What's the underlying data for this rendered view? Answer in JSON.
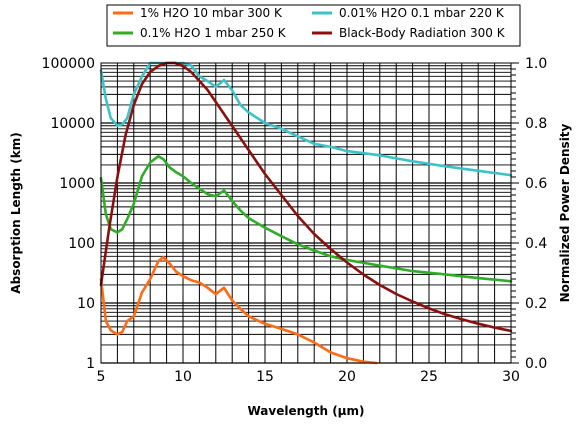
{
  "chart_data": {
    "type": "line",
    "xlabel": "Wavelength (µm)",
    "ylabel": "Absorption Length (km)",
    "y2label": "Normalized Power Density",
    "xlim": [
      5,
      30
    ],
    "ylim": [
      1,
      100000
    ],
    "yscale": "log",
    "y2lim": [
      0,
      1
    ],
    "grid": true,
    "legend_position": "top",
    "x_ticks": [
      "5",
      "10",
      "15",
      "20",
      "25",
      "30"
    ],
    "y_ticks": [
      "1",
      "10",
      "100",
      "1000",
      "10000",
      "100000"
    ],
    "y2_ticks": [
      "0.0",
      "0.2",
      "0.4",
      "0.6",
      "0.8",
      "1.0"
    ],
    "series": [
      {
        "name": "1% H2O 10 mbar 300 K",
        "color": "#ff6a13",
        "axis": "left",
        "x": [
          5,
          5.3,
          5.6,
          6,
          6.3,
          6.6,
          7,
          7.5,
          8,
          8.5,
          8.8,
          9.2,
          9.6,
          10,
          10.5,
          11,
          11.5,
          12,
          12.5,
          13,
          13.5,
          14,
          15,
          16,
          17,
          18,
          19,
          20,
          21,
          21.8
        ],
        "y": [
          25,
          5,
          3.5,
          3,
          3.3,
          5,
          6,
          15,
          25,
          50,
          58,
          45,
          33,
          28,
          24,
          22,
          18,
          14,
          18,
          11,
          8,
          6,
          4.5,
          3.7,
          3,
          2.2,
          1.5,
          1.2,
          1.05,
          1.0
        ]
      },
      {
        "name": "0.01% H2O 0.1 mbar 220 K",
        "color": "#3cc3c8",
        "axis": "left",
        "x": [
          5,
          5.3,
          5.6,
          6,
          6.3,
          6.6,
          7,
          7.5,
          8,
          8.5,
          8.8,
          9.2,
          9.6,
          10,
          10.5,
          11,
          11.5,
          12,
          12.5,
          13,
          13.5,
          14,
          15,
          16,
          17,
          18,
          19,
          20,
          22,
          24,
          26,
          28,
          30
        ],
        "y": [
          75000,
          25000,
          12000,
          9000,
          9500,
          12000,
          30000,
          60000,
          100000,
          100000,
          100000,
          100000,
          100000,
          100000,
          90000,
          60000,
          50000,
          40000,
          52000,
          35000,
          20000,
          15000,
          10000,
          8000,
          6000,
          4500,
          4000,
          3400,
          2900,
          2300,
          1900,
          1600,
          1350
        ]
      },
      {
        "name": "0.1% H2O 1 mbar 250 K",
        "color": "#2ead27",
        "axis": "left",
        "x": [
          5,
          5.3,
          5.6,
          6,
          6.3,
          6.6,
          7,
          7.5,
          8,
          8.5,
          8.8,
          9.2,
          9.6,
          10,
          10.5,
          11,
          11.5,
          12,
          12.5,
          13,
          13.5,
          14,
          15,
          16,
          17,
          18,
          19,
          20,
          22,
          24,
          26,
          28,
          30
        ],
        "y": [
          1200,
          300,
          170,
          150,
          170,
          250,
          450,
          1300,
          2200,
          2800,
          2500,
          1800,
          1500,
          1300,
          1000,
          800,
          650,
          600,
          750,
          500,
          350,
          260,
          180,
          130,
          95,
          75,
          60,
          52,
          42,
          34,
          30,
          26,
          23
        ]
      },
      {
        "name": "Black-Body Radiation 300 K",
        "color": "#8b0f0f",
        "axis": "right",
        "x": [
          5,
          5.5,
          6,
          6.5,
          7,
          7.5,
          8,
          8.5,
          9,
          9.5,
          10,
          10.5,
          11,
          11.5,
          12,
          13,
          14,
          15,
          16,
          17,
          18,
          19,
          20,
          21,
          22,
          23,
          24,
          25,
          26,
          27,
          28,
          29,
          30
        ],
        "y": [
          0.26,
          0.45,
          0.62,
          0.76,
          0.86,
          0.93,
          0.97,
          0.99,
          1.0,
          1.0,
          0.99,
          0.97,
          0.94,
          0.91,
          0.87,
          0.79,
          0.71,
          0.63,
          0.56,
          0.49,
          0.43,
          0.38,
          0.335,
          0.295,
          0.26,
          0.23,
          0.205,
          0.182,
          0.162,
          0.146,
          0.131,
          0.118,
          0.107
        ]
      }
    ]
  }
}
